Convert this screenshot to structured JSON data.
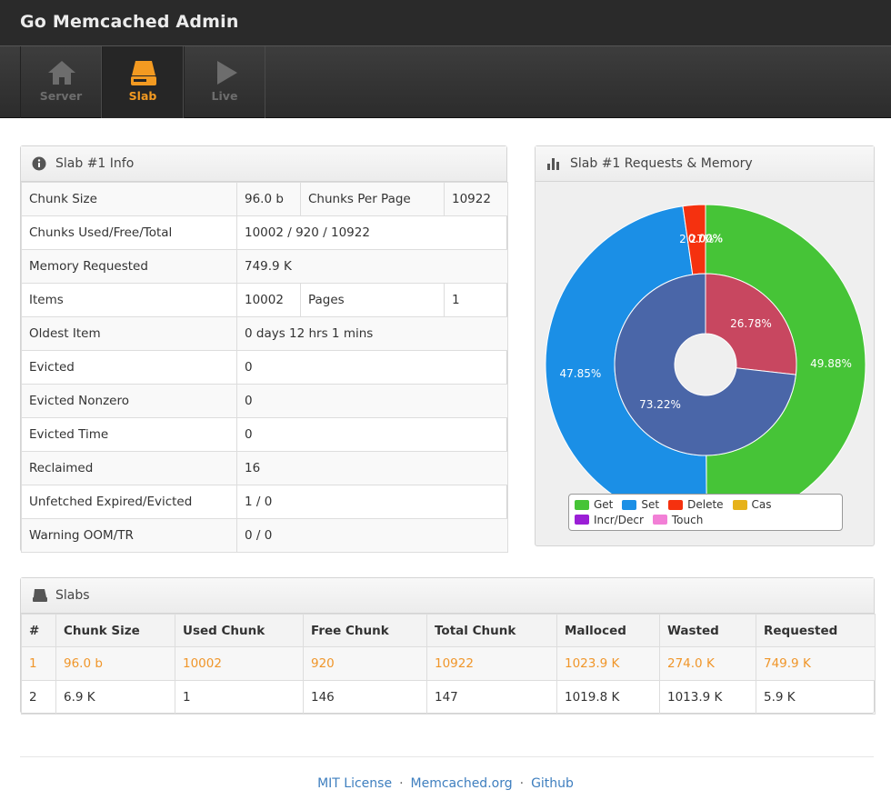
{
  "header": {
    "title": "Go Memcached Admin"
  },
  "nav": [
    {
      "label": "Server",
      "active": false
    },
    {
      "label": "Slab",
      "active": true
    },
    {
      "label": "Live",
      "active": false
    }
  ],
  "info_panel": {
    "title": "Slab #1 Info",
    "rows": [
      [
        "Chunk Size",
        "96.0 b",
        "Chunks Per Page",
        "10922"
      ],
      [
        "Chunks Used/Free/Total",
        "10002 / 920 / 10922"
      ],
      [
        "Memory Requested",
        "749.9 K"
      ],
      [
        "Items",
        "10002",
        "Pages",
        "1"
      ],
      [
        "Oldest Item",
        "0 days 12 hrs 1 mins"
      ],
      [
        "Evicted",
        "0"
      ],
      [
        "Evicted Nonzero",
        "0"
      ],
      [
        "Evicted Time",
        "0"
      ],
      [
        "Reclaimed",
        "16"
      ],
      [
        "Unfetched Expired/Evicted",
        "1 / 0"
      ],
      [
        "Warning OOM/TR",
        "0 / 0"
      ]
    ]
  },
  "chart_data": {
    "type": "donut",
    "title": "Slab #1 Requests & Memory",
    "legend": "bottom",
    "rings": [
      {
        "categories": [
          "Get",
          "Set",
          "Delete",
          "Cas",
          "Incr/Decr",
          "Touch"
        ],
        "colors": [
          "#46c437",
          "#1b8fe6",
          "#f5310f",
          "#e6b21b",
          "#9b1fd6",
          "#f27fd6"
        ],
        "values": [
          49.88,
          47.85,
          2.27,
          0,
          0,
          0
        ],
        "value_labels": [
          "49.88%",
          "47.85%",
          "2.27%",
          "0.00%",
          "0.00%",
          "0.00%"
        ]
      },
      {
        "categories": [
          null,
          null
        ],
        "colors": [
          "#c84760",
          "#4a66a8"
        ],
        "values": [
          26.78,
          73.22
        ],
        "value_labels": [
          "26.78%",
          "73.22%"
        ]
      }
    ]
  },
  "slabs_panel": {
    "title": "Slabs",
    "columns": [
      "#",
      "Chunk Size",
      "Used Chunk",
      "Free Chunk",
      "Total Chunk",
      "Malloced",
      "Wasted",
      "Requested"
    ],
    "highlight_row": 0,
    "rows": [
      [
        "1",
        "96.0 b",
        "10002",
        "920",
        "10922",
        "1023.9 K",
        "274.0 K",
        "749.9 K"
      ],
      [
        "2",
        "6.9 K",
        "1",
        "146",
        "147",
        "1019.8 K",
        "1013.9 K",
        "5.9 K"
      ]
    ]
  },
  "footer": {
    "links": [
      "MIT License",
      "Memcached.org",
      "Github"
    ]
  }
}
